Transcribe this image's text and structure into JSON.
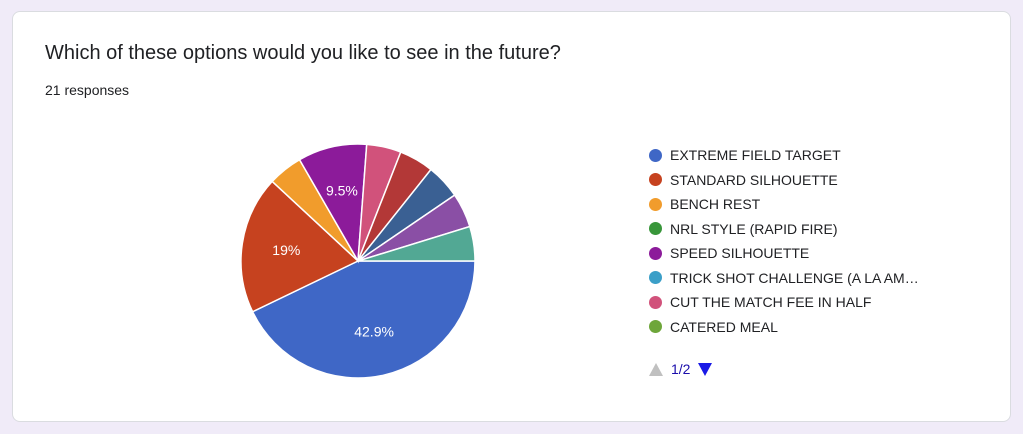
{
  "question": {
    "title": "Which of these options would you like to see in the future?",
    "responses": "21 responses"
  },
  "legend_pager": {
    "page": "1/2"
  },
  "chart_data": {
    "type": "pie",
    "total_responses": 21,
    "slices": [
      {
        "label": "EXTREME FIELD TARGET",
        "value": 9,
        "percent_label": "42.9%",
        "color": "#3f67c6"
      },
      {
        "label": "STANDARD SILHOUETTE",
        "value": 4,
        "percent_label": "19%",
        "color": "#c6421f"
      },
      {
        "label": "BENCH REST",
        "value": 1,
        "percent_label": "",
        "color": "#f19c2c"
      },
      {
        "label": "NRL STYLE (RAPID FIRE)",
        "value": 0,
        "percent_label": "",
        "color": "#38963a"
      },
      {
        "label": "SPEED SILHOUETTE",
        "value": 2,
        "percent_label": "9.5%",
        "color": "#8c1b9a"
      },
      {
        "label": "TRICK SHOT CHALLENGE (A LA AM…",
        "value": 0,
        "percent_label": "",
        "color": "#3b9fc8"
      },
      {
        "label": "CUT THE MATCH FEE IN HALF",
        "value": 1,
        "percent_label": "",
        "color": "#d1527b"
      },
      {
        "label": "CATERED MEAL",
        "value": 0,
        "percent_label": "",
        "color": "#6ea63a"
      },
      {
        "label": "",
        "value": 1,
        "percent_label": "",
        "color": "#b33837"
      },
      {
        "label": "",
        "value": 1,
        "percent_label": "",
        "color": "#3a6093"
      },
      {
        "label": "",
        "value": 1,
        "percent_label": "",
        "color": "#8a4fa5"
      },
      {
        "label": "",
        "value": 1,
        "percent_label": "",
        "color": "#52a894"
      }
    ],
    "legend_visible_count": 8,
    "legend_placement": "right"
  }
}
